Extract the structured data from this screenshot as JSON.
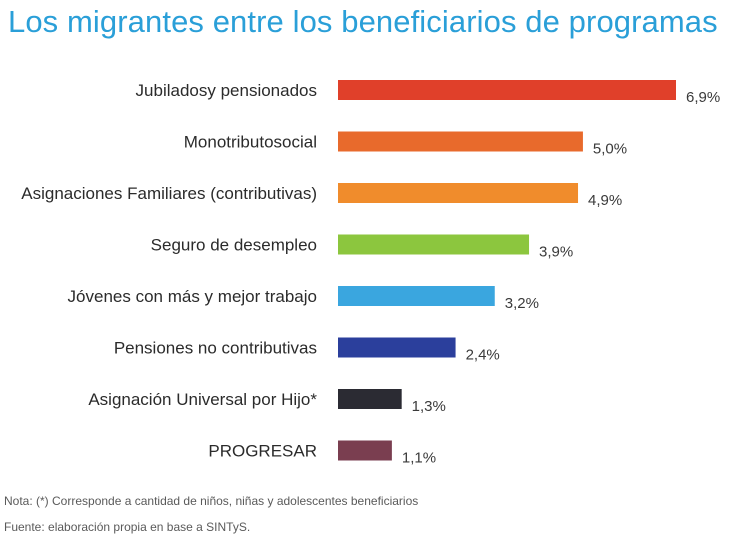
{
  "title": "Los migrantes entre los beneficiarios de programas",
  "note": "Nota: (*) Corresponde a cantidad de niños, niñas y adolescentes beneficiarios",
  "source": "Fuente: elaboración propia en base a SINTyS.",
  "chart_data": {
    "type": "bar",
    "orientation": "horizontal",
    "categories": [
      "Jubiladosy pensionados",
      "Monotributosocial",
      "Asignaciones Familiares (contributivas)",
      "Seguro de desempleo",
      "Jóvenes con más y mejor trabajo",
      "Pensiones no contributivas",
      "Asignación Universal por Hijo*",
      "PROGRESAR"
    ],
    "values": [
      6.9,
      5.0,
      4.9,
      3.9,
      3.2,
      2.4,
      1.3,
      1.1
    ],
    "value_labels": [
      "6,9%",
      "5,0%",
      "4,9%",
      "3,9%",
      "3,2%",
      "2,4%",
      "1,3%",
      "1,1%"
    ],
    "colors": [
      "#e0402a",
      "#e86a2c",
      "#f08c2c",
      "#8cc63e",
      "#3aa6df",
      "#2b3f9c",
      "#2b2b33",
      "#7a3e50"
    ],
    "xlim": [
      0,
      6.9
    ],
    "grid": false,
    "legend": "none"
  }
}
